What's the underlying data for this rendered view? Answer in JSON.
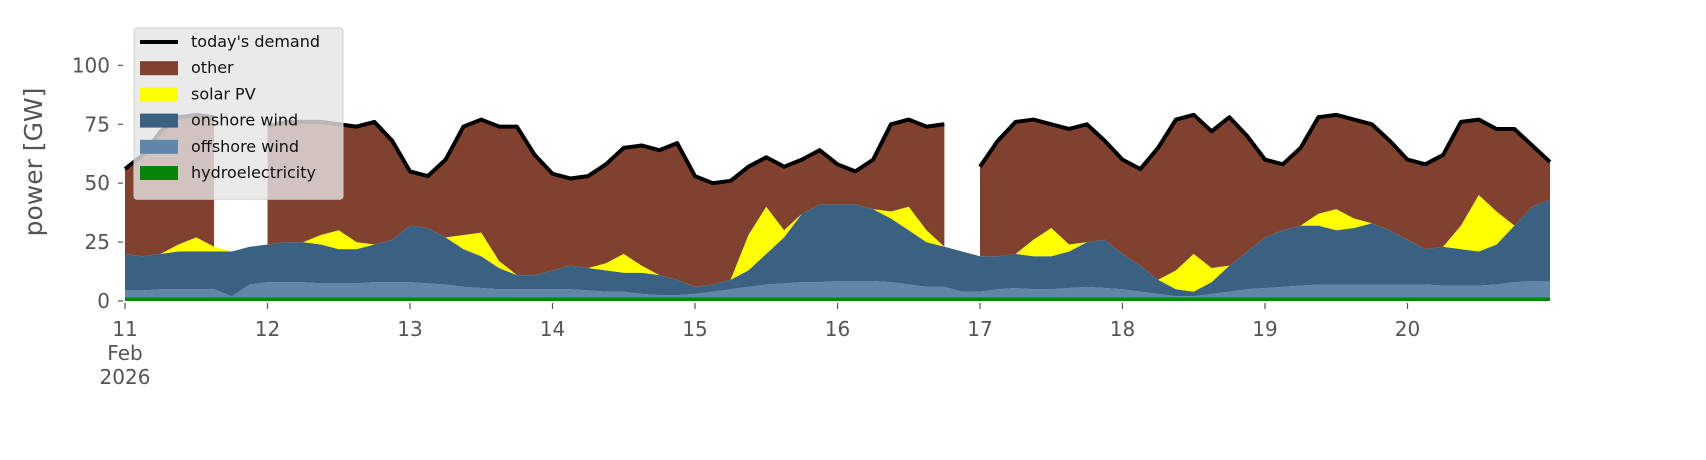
{
  "chart_data": {
    "type": "stacked-area",
    "ylabel": "power [GW]",
    "xlim": [
      11,
      21
    ],
    "xticks": [
      {
        "value": 11,
        "label": "11\nFeb\n2026"
      },
      12,
      13,
      14,
      15,
      16,
      17,
      18,
      19,
      20
    ],
    "ylim": [
      0,
      115
    ],
    "yticks": [
      0,
      25,
      50,
      75,
      100
    ],
    "legend": "upper left",
    "x": [
      11,
      11.125,
      11.25,
      11.375,
      11.5,
      11.625,
      11.75,
      11.875,
      12,
      12.125,
      12.25,
      12.375,
      12.5,
      12.625,
      12.75,
      12.875,
      13,
      13.125,
      13.25,
      13.375,
      13.5,
      13.625,
      13.75,
      13.875,
      14,
      14.125,
      14.25,
      14.375,
      14.5,
      14.625,
      14.75,
      14.875,
      15,
      15.125,
      15.25,
      15.375,
      15.5,
      15.625,
      15.75,
      15.875,
      16,
      16.125,
      16.25,
      16.375,
      16.5,
      16.625,
      16.75,
      16.875,
      17,
      17.125,
      17.25,
      17.375,
      17.5,
      17.625,
      17.75,
      17.875,
      18,
      18.125,
      18.25,
      18.375,
      18.5,
      18.625,
      18.75,
      18.875,
      19,
      19.125,
      19.25,
      19.375,
      19.5,
      19.625,
      19.75,
      19.875,
      20,
      20.125,
      20.25,
      20.375,
      20.5,
      20.625,
      20.75,
      20.875,
      21
    ],
    "series": [
      {
        "name": "today's demand",
        "type": "line",
        "color": "#000000",
        "values": [
          56,
          62,
          72,
          78,
          79,
          78,
          null,
          null,
          74,
          76,
          76,
          76,
          75,
          74,
          76,
          68,
          55,
          53,
          60,
          74,
          77,
          74,
          74,
          62,
          54,
          52,
          53,
          58,
          65,
          66,
          64,
          67,
          53,
          50,
          51,
          57,
          61,
          57,
          60,
          64,
          58,
          55,
          60,
          75,
          77,
          74,
          75,
          null,
          57,
          68,
          76,
          77,
          75,
          73,
          75,
          68,
          60,
          56,
          65,
          77,
          79,
          72,
          78,
          70,
          60,
          58,
          65,
          78,
          79,
          77,
          75,
          68,
          60,
          58,
          62,
          76,
          77,
          73,
          73,
          66,
          59
        ]
      },
      {
        "name": "other",
        "type": "area",
        "color": "#81412f",
        "values": [
          36,
          43,
          52,
          54,
          52,
          55,
          null,
          null,
          50,
          51,
          51,
          48,
          45,
          49,
          52,
          42,
          23,
          22,
          33,
          46,
          48,
          57,
          63,
          51,
          41,
          37,
          39,
          42,
          45,
          51,
          53,
          58,
          47,
          43,
          42,
          29,
          21,
          27,
          23,
          23,
          17,
          14,
          21,
          37,
          37,
          44,
          52,
          null,
          38,
          49,
          56,
          51,
          44,
          49,
          50,
          42,
          40,
          41,
          56,
          64,
          59,
          58,
          63,
          49,
          33,
          28,
          33,
          41,
          40,
          42,
          42,
          38,
          34,
          36,
          39,
          44,
          32,
          35,
          41,
          26,
          16
        ]
      },
      {
        "name": "solar PV",
        "type": "area",
        "color": "#ffff00",
        "values": [
          0,
          0,
          0,
          3,
          6,
          2,
          0,
          0,
          0,
          0,
          0,
          4,
          8,
          3,
          0,
          0,
          0,
          0,
          0,
          6,
          10,
          3,
          0,
          0,
          0,
          0,
          0,
          3,
          8,
          3,
          0,
          0,
          0,
          0,
          0,
          15,
          20,
          3,
          0,
          0,
          0,
          0,
          0,
          3,
          10,
          5,
          0,
          0,
          0,
          0,
          0,
          7,
          12,
          3,
          0,
          0,
          0,
          0,
          0,
          8,
          16,
          6,
          0,
          0,
          0,
          0,
          0,
          5,
          9,
          4,
          0,
          0,
          0,
          0,
          0,
          10,
          24,
          14,
          0,
          0,
          0
        ]
      },
      {
        "name": "onshore wind",
        "type": "area",
        "color": "#3b6182",
        "values": [
          15.5,
          14.5,
          15,
          16,
          16,
          16,
          19,
          16,
          16,
          17,
          17,
          16.5,
          14.5,
          14.5,
          16,
          18,
          24,
          23.5,
          20,
          16,
          13.5,
          9,
          6,
          6,
          8,
          10,
          9.5,
          9,
          8,
          9,
          8.5,
          6.5,
          3,
          3,
          4,
          7,
          13,
          19.5,
          29,
          33,
          32.5,
          32.5,
          30.5,
          27,
          23,
          19,
          17,
          17,
          15,
          14,
          14.5,
          14,
          14,
          15.5,
          19,
          20.5,
          15,
          11,
          6,
          3,
          2,
          5,
          11,
          16,
          21.5,
          24,
          25.5,
          25,
          23,
          24,
          26,
          23,
          19,
          15,
          16.5,
          15.5,
          14.5,
          17,
          24,
          31.5,
          34.5
        ]
      },
      {
        "name": "offshore wind",
        "type": "area",
        "color": "#5f87aa",
        "values": [
          3,
          3,
          3.5,
          3.5,
          3.5,
          3.5,
          0.5,
          5.5,
          6.5,
          6.5,
          6.5,
          6,
          6,
          6,
          6.5,
          6.5,
          6.5,
          6,
          5.5,
          4.5,
          4,
          3.5,
          3.5,
          3.5,
          3.5,
          3.5,
          3,
          2.5,
          2.5,
          1.5,
          1,
          1,
          1.5,
          2.5,
          3.5,
          4.5,
          5.5,
          6,
          6.5,
          6.5,
          7,
          7,
          7,
          6.5,
          5.5,
          4.5,
          4.5,
          2.5,
          2.5,
          3.5,
          4,
          3.5,
          3.5,
          4,
          4.5,
          4,
          3.5,
          2.5,
          1.5,
          0.5,
          0.5,
          1.5,
          2.5,
          3.5,
          4,
          4.5,
          5,
          5.5,
          5.5,
          5.5,
          5.5,
          5.5,
          5.5,
          5.5,
          5,
          5,
          5,
          5.5,
          6.5,
          7,
          7
        ]
      },
      {
        "name": "hydroelectricity",
        "type": "area",
        "color": "#088408",
        "values": [
          1.5,
          1.5,
          1.5,
          1.5,
          1.5,
          1.5,
          1.5,
          1.5,
          1.5,
          1.5,
          1.5,
          1.5,
          1.5,
          1.5,
          1.5,
          1.5,
          1.5,
          1.5,
          1.5,
          1.5,
          1.5,
          1.5,
          1.5,
          1.5,
          1.5,
          1.5,
          1.5,
          1.5,
          1.5,
          1.5,
          1.5,
          1.5,
          1.5,
          1.5,
          1.5,
          1.5,
          1.5,
          1.5,
          1.5,
          1.5,
          1.5,
          1.5,
          1.5,
          1.5,
          1.5,
          1.5,
          1.5,
          1.5,
          1.5,
          1.5,
          1.5,
          1.5,
          1.5,
          1.5,
          1.5,
          1.5,
          1.5,
          1.5,
          1.5,
          1.5,
          1.5,
          1.5,
          1.5,
          1.5,
          1.5,
          1.5,
          1.5,
          1.5,
          1.5,
          1.5,
          1.5,
          1.5,
          1.5,
          1.5,
          1.5,
          1.5,
          1.5,
          1.5,
          1.5,
          1.5,
          1.5
        ]
      }
    ]
  }
}
